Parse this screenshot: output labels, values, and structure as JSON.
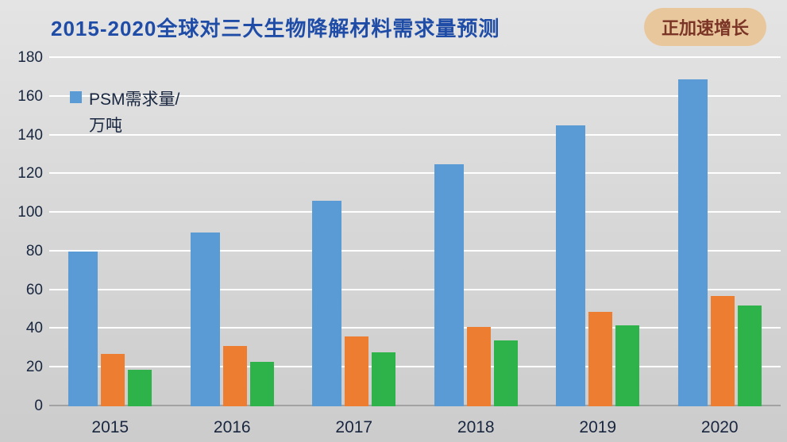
{
  "header": {
    "title": "2015-2020全球对三大生物降解材料需求量预测",
    "badge": "正加速增长"
  },
  "legend": {
    "line1": "PSM需求量/",
    "line2": "万吨"
  },
  "colors": {
    "title": "#1e4ca6",
    "badge_bg": "#e9c79c",
    "badge_text": "#7b3526",
    "series_blue": "#5b9bd5",
    "series_orange": "#ed7d31",
    "series_green": "#2db34a",
    "background": "#d6d6d6",
    "gridline": "#ffffff"
  },
  "chart_data": {
    "type": "bar",
    "title": "2015-2020全球对三大生物降解材料需求量预测",
    "categories": [
      "2015",
      "2016",
      "2017",
      "2018",
      "2019",
      "2020"
    ],
    "series": [
      {
        "name": "PSM需求量/万吨",
        "color": "#5b9bd5",
        "values": [
          80,
          90,
          106,
          125,
          145,
          169
        ]
      },
      {
        "name": "",
        "color": "#ed7d31",
        "values": [
          27,
          31,
          36,
          41,
          49,
          57
        ]
      },
      {
        "name": "",
        "color": "#2db34a",
        "values": [
          19,
          23,
          28,
          34,
          42,
          52
        ]
      }
    ],
    "xlabel": "",
    "ylabel": "",
    "ylim": [
      0,
      180
    ],
    "ytick_step": 20,
    "grid": true,
    "legend_position": "inside-left"
  }
}
